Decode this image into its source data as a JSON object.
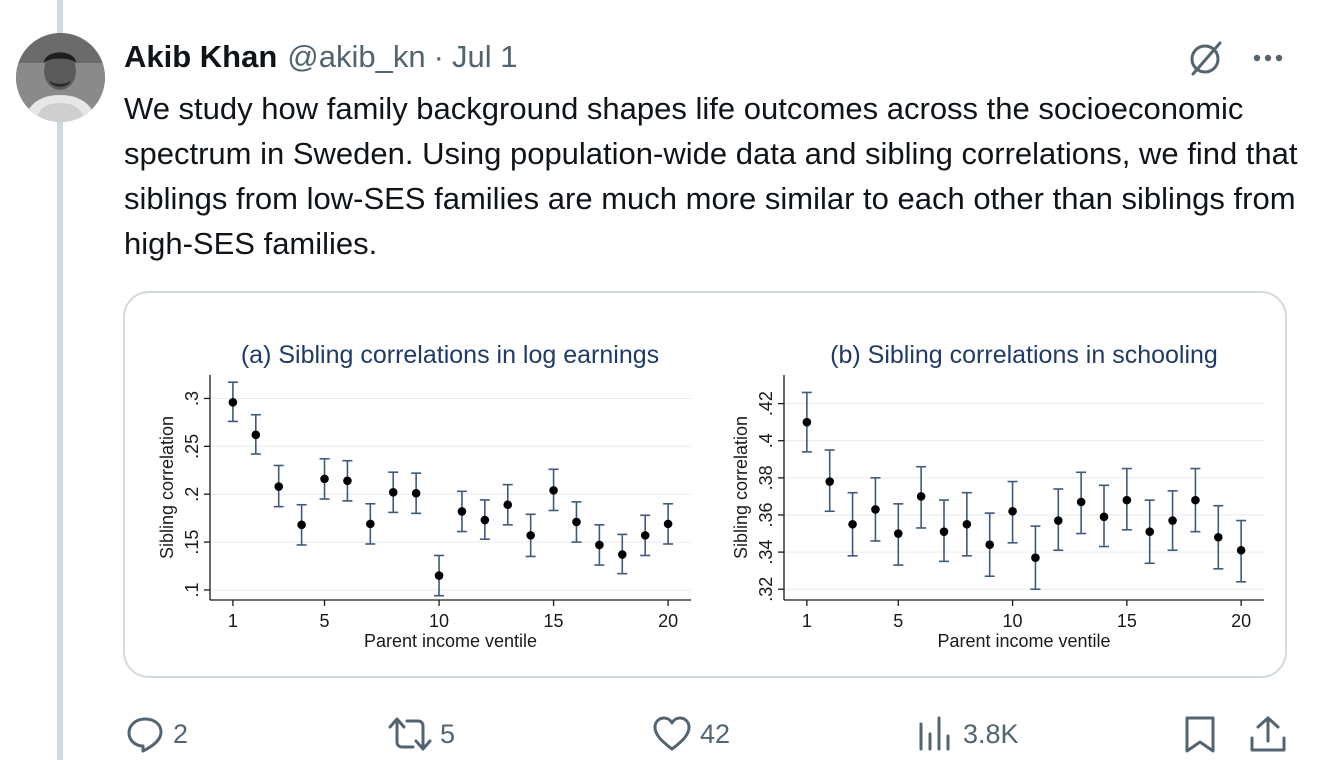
{
  "tweet": {
    "author_name": "Akib Khan",
    "handle": "@akib_kn",
    "separator": "·",
    "date": "Jul 1",
    "text": "We study how family background shapes life outcomes across the socioeconomic spectrum in Sweden. Using population-wide data and sibling correlations, we find that siblings from low-SES families are much more similar to each other than siblings from high-SES families."
  },
  "actions": {
    "replies": "2",
    "retweets": "5",
    "likes": "42",
    "views": "3.8K"
  },
  "colors": {
    "text": "#0f1419",
    "muted": "#536471",
    "chart_title": "#1f3b66",
    "error_bar": "#3e5a7c"
  },
  "chart_data": [
    {
      "type": "scatter",
      "title": "(a) Sibling correlations in log earnings",
      "xlabel": "Parent income ventile",
      "ylabel": "Sibling correlation",
      "x": [
        1,
        2,
        3,
        4,
        5,
        6,
        7,
        8,
        9,
        10,
        11,
        12,
        13,
        14,
        15,
        16,
        17,
        18,
        19,
        20
      ],
      "values": [
        0.296,
        0.262,
        0.208,
        0.168,
        0.216,
        0.214,
        0.169,
        0.202,
        0.201,
        0.115,
        0.182,
        0.173,
        0.189,
        0.157,
        0.204,
        0.171,
        0.147,
        0.137,
        0.157,
        0.169
      ],
      "lower": [
        0.276,
        0.242,
        0.187,
        0.147,
        0.195,
        0.193,
        0.148,
        0.181,
        0.18,
        0.094,
        0.161,
        0.153,
        0.168,
        0.135,
        0.183,
        0.15,
        0.126,
        0.117,
        0.136,
        0.148
      ],
      "upper": [
        0.317,
        0.283,
        0.23,
        0.189,
        0.237,
        0.235,
        0.19,
        0.223,
        0.222,
        0.136,
        0.203,
        0.194,
        0.21,
        0.179,
        0.226,
        0.192,
        0.168,
        0.158,
        0.178,
        0.19
      ],
      "xticks": [
        1,
        5,
        10,
        15,
        20
      ],
      "yticks": [
        0.1,
        0.15,
        0.2,
        0.25,
        0.3
      ],
      "ytick_labels": [
        ".1",
        ".15",
        ".2",
        ".25",
        ".3"
      ],
      "xlim": [
        0,
        21
      ],
      "ylim": [
        0.0895,
        0.3245
      ],
      "grid": true
    },
    {
      "type": "scatter",
      "title": "(b) Sibling correlations in schooling",
      "xlabel": "Parent income ventile",
      "ylabel": "Sibling correlation",
      "x": [
        1,
        2,
        3,
        4,
        5,
        6,
        7,
        8,
        9,
        10,
        11,
        12,
        13,
        14,
        15,
        16,
        17,
        18,
        19,
        20
      ],
      "values": [
        0.41,
        0.378,
        0.355,
        0.363,
        0.35,
        0.37,
        0.351,
        0.355,
        0.344,
        0.362,
        0.337,
        0.357,
        0.367,
        0.359,
        0.368,
        0.351,
        0.357,
        0.368,
        0.348,
        0.341
      ],
      "lower": [
        0.394,
        0.362,
        0.338,
        0.346,
        0.333,
        0.353,
        0.335,
        0.338,
        0.327,
        0.345,
        0.32,
        0.341,
        0.35,
        0.343,
        0.352,
        0.334,
        0.341,
        0.351,
        0.331,
        0.324
      ],
      "upper": [
        0.426,
        0.395,
        0.372,
        0.38,
        0.366,
        0.386,
        0.368,
        0.372,
        0.361,
        0.378,
        0.354,
        0.374,
        0.383,
        0.376,
        0.385,
        0.368,
        0.373,
        0.385,
        0.365,
        0.357
      ],
      "xticks": [
        1,
        5,
        10,
        15,
        20
      ],
      "yticks": [
        0.32,
        0.34,
        0.36,
        0.38,
        0.4,
        0.42
      ],
      "ytick_labels": [
        ".32",
        ".34",
        ".36",
        ".38",
        ".4",
        ".42"
      ],
      "xlim": [
        0,
        21
      ],
      "ylim": [
        0.3142,
        0.4354
      ],
      "grid": true
    }
  ]
}
